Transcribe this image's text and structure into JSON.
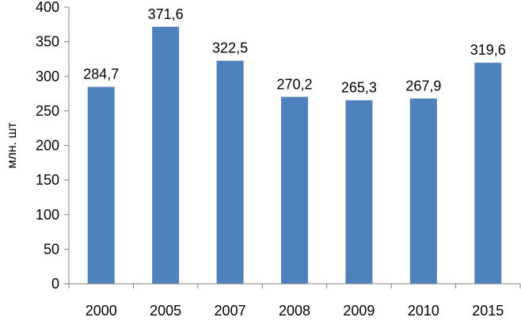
{
  "chart_data": {
    "type": "bar",
    "categories": [
      "2000",
      "2005",
      "2007",
      "2008",
      "2009",
      "2010",
      "2015"
    ],
    "values": [
      284.7,
      371.6,
      322.5,
      270.2,
      265.3,
      267.9,
      319.6
    ],
    "data_labels": [
      "284,7",
      "371,6",
      "322,5",
      "270,2",
      "265,3",
      "267,9",
      "319,6"
    ],
    "title": "",
    "xlabel": "",
    "ylabel": "млн. шт",
    "ylim": [
      0,
      400
    ],
    "yticks": [
      "0",
      "50",
      "100",
      "150",
      "200",
      "250",
      "300",
      "350",
      "400"
    ],
    "grid": false,
    "legend": "none",
    "bar_color": "#4F81BD",
    "axis_color": "#808080"
  }
}
